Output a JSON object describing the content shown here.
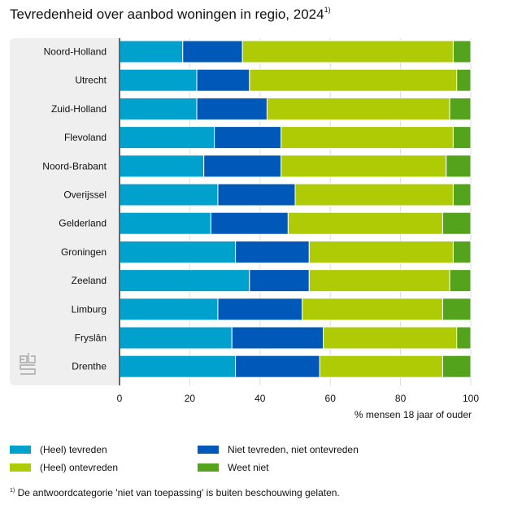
{
  "chart_data": {
    "type": "bar",
    "orientation": "horizontal",
    "stacked": true,
    "title": "Tevredenheid over aanbod woningen in regio, 2024",
    "title_footnote_marker": "1)",
    "xlabel": "% mensen 18 jaar of ouder",
    "ylabel": "",
    "xlim": [
      0,
      100
    ],
    "xticks": [
      0,
      20,
      40,
      60,
      80,
      100
    ],
    "grid": true,
    "legend_position": "bottom",
    "categories": [
      "Noord-Holland",
      "Utrecht",
      "Zuid-Holland",
      "Flevoland",
      "Noord-Brabant",
      "Overijssel",
      "Gelderland",
      "Groningen",
      "Zeeland",
      "Limburg",
      "Fryslân",
      "Drenthe"
    ],
    "series": [
      {
        "name": "(Heel) tevreden",
        "color": "#00a1cd",
        "values": [
          18,
          22,
          22,
          27,
          24,
          28,
          26,
          33,
          37,
          28,
          32,
          33
        ]
      },
      {
        "name": "Niet tevreden, niet ontevreden",
        "color": "#0058b8",
        "values": [
          17,
          15,
          20,
          19,
          22,
          22,
          22,
          21,
          17,
          24,
          26,
          24
        ]
      },
      {
        "name": "(Heel) ontevreden",
        "color": "#afcb05",
        "values": [
          60,
          59,
          52,
          49,
          47,
          45,
          44,
          41,
          40,
          40,
          38,
          35
        ]
      },
      {
        "name": "Weet niet",
        "color": "#53a31d",
        "values": [
          5,
          4,
          6,
          5,
          7,
          5,
          8,
          5,
          6,
          8,
          4,
          8
        ]
      }
    ],
    "legend_order": [
      0,
      1,
      2,
      3
    ],
    "footnote": "De antwoordcategorie 'niet van toepassing' is buiten beschouwing gelaten.",
    "footnote_marker": "1)"
  },
  "logo": {
    "name": "cbs-logo"
  }
}
